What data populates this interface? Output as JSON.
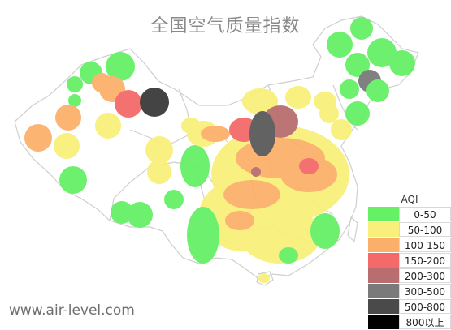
{
  "title": "全国空气质量指数",
  "source": "www.air-level.com",
  "legend": {
    "title": "AQI",
    "items": [
      {
        "label": "0-50",
        "color": "#66f066"
      },
      {
        "label": "50-100",
        "color": "#f8f07a"
      },
      {
        "label": "100-150",
        "color": "#fbb06a"
      },
      {
        "label": "150-200",
        "color": "#f46a6a"
      },
      {
        "label": "200-300",
        "color": "#b86e6e"
      },
      {
        "label": "300-500",
        "color": "#7a7a7a"
      },
      {
        "label": "500-800",
        "color": "#4a4a4a"
      },
      {
        "label": "800以上",
        "color": "#000000"
      }
    ]
  },
  "map": {
    "background": "#ffffff",
    "border_color": "#cfcfcf"
  }
}
